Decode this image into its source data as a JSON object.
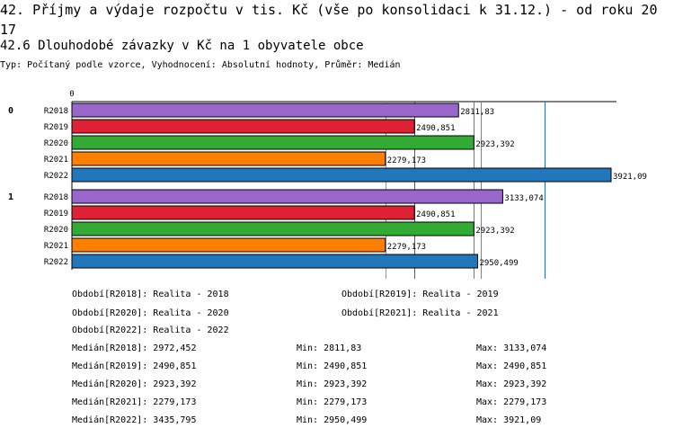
{
  "header": {
    "title": "42. Příjmy a výdaje rozpočtu v tis. Kč (vše po konsolidaci k 31.12.) - od roku 2017",
    "subtitle": "42.6 Dlouhodobé závazky v Kč na 1 obyvatele obce",
    "typ": "Typ: Počítaný podle vzorce, Vyhodnocení: Absolutní hodnoty, Průměr: Medián"
  },
  "chart_data": {
    "type": "bar",
    "orientation": "horizontal",
    "axis_zero_label": "0",
    "xlim": [
      0,
      3921.09
    ],
    "groups": [
      {
        "label": "0",
        "bars": [
          {
            "category": "R2018",
            "value": 2811.83,
            "label": "2811,83",
            "color": "#9966cc"
          },
          {
            "category": "R2019",
            "value": 2490.851,
            "label": "2490,851",
            "color": "#dd2233"
          },
          {
            "category": "R2020",
            "value": 2923.392,
            "label": "2923,392",
            "color": "#33aa33"
          },
          {
            "category": "R2021",
            "value": 2279.173,
            "label": "2279,173",
            "color": "#ff8000"
          },
          {
            "category": "R2022",
            "value": 3921.09,
            "label": "3921,09",
            "color": "#2277bb"
          }
        ]
      },
      {
        "label": "1",
        "bars": [
          {
            "category": "R2018",
            "value": 3133.074,
            "label": "3133,074",
            "color": "#9966cc"
          },
          {
            "category": "R2019",
            "value": 2490.851,
            "label": "2490,851",
            "color": "#dd2233"
          },
          {
            "category": "R2020",
            "value": 2923.392,
            "label": "2923,392",
            "color": "#33aa33"
          },
          {
            "category": "R2021",
            "value": 2279.173,
            "label": "2279,173",
            "color": "#ff8000"
          },
          {
            "category": "R2022",
            "value": 2950.499,
            "label": "2950,499",
            "color": "#2277bb"
          }
        ]
      }
    ],
    "reference_lines": [
      {
        "series": "R2018",
        "value": 2972.452,
        "color": "#9966cc"
      },
      {
        "series": "R2019",
        "value": 2490.851,
        "color": "#dd2233"
      },
      {
        "series": "R2020",
        "value": 2923.392,
        "color": "#33aa33"
      },
      {
        "series": "R2021",
        "value": 2279.173,
        "color": "#ff8000"
      },
      {
        "series": "R2022",
        "value": 3435.795,
        "color": "#2277bb"
      }
    ]
  },
  "legend": {
    "periods": [
      "Období[R2018]: Realita - 2018",
      "Období[R2019]: Realita - 2019",
      "Období[R2020]: Realita - 2020",
      "Období[R2021]: Realita - 2021",
      "Období[R2022]: Realita - 2022"
    ],
    "stats": [
      {
        "median": "Medián[R2018]: 2972,452",
        "min": "Min: 2811,83",
        "max": "Max: 3133,074"
      },
      {
        "median": "Medián[R2019]: 2490,851",
        "min": "Min: 2490,851",
        "max": "Max: 2490,851"
      },
      {
        "median": "Medián[R2020]: 2923,392",
        "min": "Min: 2923,392",
        "max": "Max: 2923,392"
      },
      {
        "median": "Medián[R2021]: 2279,173",
        "min": "Min: 2279,173",
        "max": "Max: 2279,173"
      },
      {
        "median": "Medián[R2022]: 3435,795",
        "min": "Min: 2950,499",
        "max": "Max: 3921,09"
      }
    ]
  }
}
